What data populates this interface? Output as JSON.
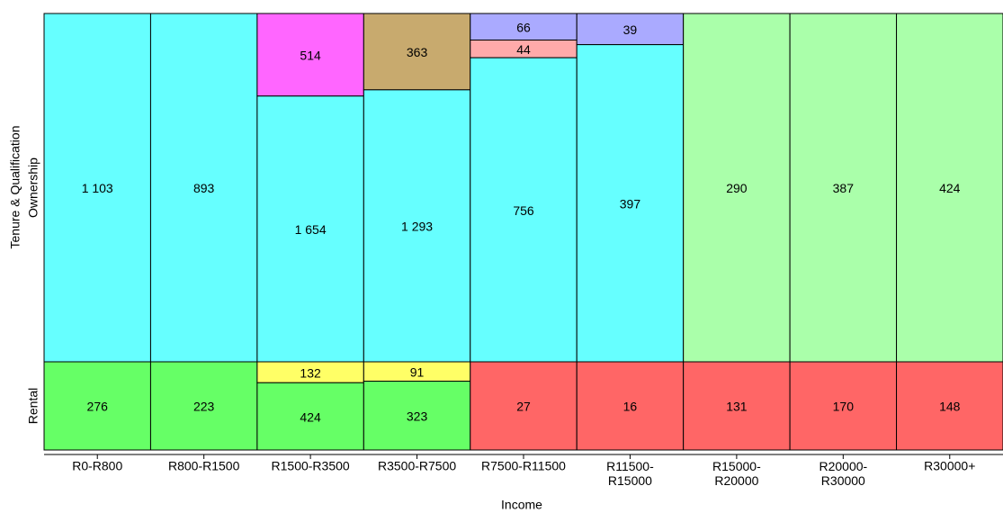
{
  "chart_data": {
    "type": "mosaic",
    "x_label": "Income",
    "y_label": "Tenure & Qualification",
    "categories": [
      "R0-R800",
      "R800-R1500",
      "R1500-R3500",
      "R3500-R7500",
      "R7500-R11500",
      "R11500-R15000",
      "R15000-R20000",
      "R20000-R30000",
      "R30000+"
    ],
    "rows": [
      {
        "name": "Ownership",
        "series": [
          {
            "color": "#aaaaff",
            "values": [
              null,
              null,
              null,
              null,
              66,
              39,
              null,
              null,
              null
            ]
          },
          {
            "color": "#ffaaaa",
            "values": [
              null,
              null,
              null,
              null,
              44,
              null,
              null,
              null,
              null
            ]
          },
          {
            "color": "#ff66ff",
            "values": [
              null,
              null,
              514,
              null,
              null,
              null,
              null,
              null,
              null
            ]
          },
          {
            "color": "#c8aa6e",
            "values": [
              null,
              null,
              null,
              363,
              null,
              null,
              null,
              null,
              null
            ]
          },
          {
            "color": "#66ffff",
            "values": [
              1103,
              893,
              1654,
              1293,
              756,
              397,
              null,
              null,
              null
            ],
            "value_labels": [
              "1 103",
              "893",
              "1 654",
              "1 293",
              "756",
              "397",
              null,
              null,
              null
            ]
          },
          {
            "color": "#aaffaa",
            "values": [
              null,
              null,
              null,
              null,
              null,
              null,
              290,
              387,
              424
            ]
          }
        ]
      },
      {
        "name": "Rental",
        "series": [
          {
            "color": "#ffff66",
            "values": [
              null,
              null,
              132,
              91,
              null,
              null,
              null,
              null,
              null
            ]
          },
          {
            "color": "#66ff66",
            "values": [
              276,
              223,
              424,
              323,
              null,
              null,
              null,
              null,
              null
            ]
          },
          {
            "color": "#ff6666",
            "values": [
              null,
              null,
              null,
              null,
              27,
              16,
              131,
              170,
              148
            ]
          }
        ]
      }
    ]
  }
}
